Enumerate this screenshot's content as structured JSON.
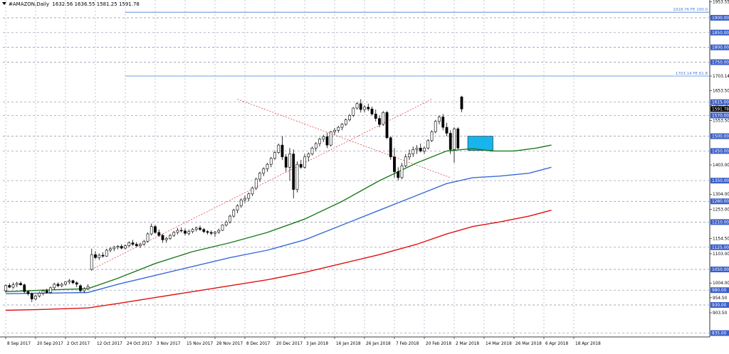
{
  "header": {
    "symbol_timeframe": "#AMAZON,Daily",
    "ohlc": "1632.56 1636.55 1581.25 1591.78"
  },
  "colors": {
    "background": "#ffffff",
    "grid": "#8a8ea8",
    "candle": "#000000",
    "ma_fast": "#1a7a1a",
    "ma_mid": "#3a6ad8",
    "ma_slow": "#e01010",
    "fib_line": "#4a7fd4",
    "zone": "#18b4ee",
    "trend_dash": "#e03030",
    "level_label_bg": "#3a5fc8",
    "price_label_bg": "#000000"
  },
  "chart_data": {
    "type": "candlestick",
    "symbol": "#AMAZON",
    "timeframe": "Daily",
    "ylim": [
      822,
      1960
    ],
    "y_ticks": [
      1953.55,
      1904.0,
      1703.14,
      1653.5,
      1603.0,
      1553.5,
      1403.0,
      1304.0,
      1253.0,
      1154.5,
      1103.0,
      1004.0,
      954.5,
      903.5
    ],
    "x_tick_labels": [
      "8 Sep 2017",
      "20 Sep 2017",
      "2 Oct 2017",
      "12 Oct 2017",
      "24 Oct 2017",
      "3 Nov 2017",
      "15 Nov 2017",
      "28 Nov 2017",
      "8 Dec 2017",
      "20 Dec 2017",
      "3 Jan 2018",
      "16 Jan 2018",
      "26 Jan 2018",
      "7 Feb 2018",
      "20 Feb 2018",
      "2 Mar 2018",
      "14 Mar 2018",
      "26 Mar 2018",
      "6 Apr 2018",
      "18 Apr 2018"
    ],
    "horizontal_levels": [
      1900.0,
      1850.0,
      1800.0,
      1750.0,
      1615.0,
      1570.0,
      1500.0,
      1450.0,
      1350.0,
      1280.0,
      1210.0,
      1125.0,
      1050.0,
      980.0,
      930.0,
      835.0
    ],
    "level_labels": [
      "1900.00",
      "1850.00",
      "1800.00",
      "1750.00",
      "1615.00",
      "1570.00",
      "1500.00",
      "1450.00",
      "1350.00",
      "1280.00",
      "1210.00",
      "1125.00",
      "1050.00",
      "980.00",
      "930.00",
      "835.00"
    ],
    "current_price": 1591.78,
    "current_price_label": "1591.78",
    "fib_levels": [
      {
        "value": 1918.76,
        "label": "1918.76 FE 100.0"
      },
      {
        "value": 1703.14,
        "label": "1703.14 FE 61.8"
      }
    ],
    "zone": {
      "from_date_index": 62,
      "to_date_index": 68,
      "low": 1452,
      "high": 1500
    },
    "trendlines": [
      {
        "from": [
          14,
          1050
        ],
        "to": [
          53,
          1625
        ]
      },
      {
        "from": [
          53,
          1625
        ],
        "to": [
          58,
          1360
        ]
      }
    ],
    "candles": [
      [
        978,
        1000,
        972,
        996
      ],
      [
        996,
        1003,
        987,
        990
      ],
      [
        990,
        1006,
        985,
        998
      ],
      [
        998,
        1008,
        990,
        1003
      ],
      [
        1003,
        1010,
        995,
        998
      ],
      [
        998,
        1002,
        970,
        975
      ],
      [
        975,
        980,
        962,
        968
      ],
      [
        968,
        972,
        940,
        950
      ],
      [
        950,
        965,
        945,
        960
      ],
      [
        960,
        975,
        955,
        970
      ],
      [
        970,
        982,
        962,
        978
      ],
      [
        978,
        985,
        968,
        972
      ],
      [
        972,
        992,
        968,
        988
      ],
      [
        988,
        1005,
        982,
        1000
      ],
      [
        1000,
        1006,
        990,
        995
      ],
      [
        995,
        1005,
        990,
        1000
      ],
      [
        1000,
        1010,
        995,
        1008
      ],
      [
        1008,
        1018,
        1000,
        1012
      ],
      [
        1012,
        1015,
        1000,
        1005
      ],
      [
        1005,
        1010,
        990,
        1000
      ],
      [
        995,
        1000,
        972,
        978
      ],
      [
        978,
        990,
        970,
        985
      ],
      [
        985,
        1000,
        980,
        992
      ],
      [
        1050,
        1120,
        1045,
        1100
      ],
      [
        1100,
        1112,
        1085,
        1090
      ],
      [
        1090,
        1104,
        1082,
        1098
      ],
      [
        1098,
        1108,
        1090,
        1095
      ],
      [
        1095,
        1120,
        1093,
        1115
      ],
      [
        1115,
        1125,
        1108,
        1120
      ],
      [
        1120,
        1130,
        1112,
        1125
      ],
      [
        1125,
        1132,
        1118,
        1128
      ],
      [
        1128,
        1135,
        1118,
        1122
      ],
      [
        1122,
        1134,
        1118,
        1130
      ],
      [
        1130,
        1145,
        1125,
        1140
      ],
      [
        1140,
        1150,
        1130,
        1135
      ],
      [
        1135,
        1142,
        1125,
        1130
      ],
      [
        1130,
        1140,
        1122,
        1135
      ],
      [
        1135,
        1150,
        1130,
        1145
      ],
      [
        1145,
        1175,
        1140,
        1170
      ],
      [
        1170,
        1205,
        1165,
        1195
      ],
      [
        1195,
        1200,
        1170,
        1175
      ],
      [
        1175,
        1185,
        1160,
        1165
      ],
      [
        1165,
        1170,
        1140,
        1150
      ],
      [
        1150,
        1160,
        1140,
        1155
      ],
      [
        1155,
        1170,
        1150,
        1165
      ],
      [
        1165,
        1180,
        1160,
        1175
      ],
      [
        1175,
        1190,
        1168,
        1182
      ],
      [
        1182,
        1192,
        1175,
        1180
      ],
      [
        1180,
        1188,
        1165,
        1172
      ],
      [
        1172,
        1185,
        1165,
        1178
      ],
      [
        1178,
        1190,
        1172,
        1185
      ],
      [
        1185,
        1195,
        1178,
        1190
      ],
      [
        1190,
        1198,
        1180,
        1185
      ],
      [
        1185,
        1190,
        1172,
        1178
      ],
      [
        1178,
        1182,
        1168,
        1175
      ],
      [
        1175,
        1182,
        1165,
        1172
      ],
      [
        1172,
        1180,
        1160,
        1176
      ],
      [
        1176,
        1188,
        1170,
        1182
      ],
      [
        1182,
        1202,
        1180,
        1200
      ],
      [
        1200,
        1215,
        1195,
        1210
      ],
      [
        1210,
        1235,
        1205,
        1230
      ],
      [
        1230,
        1255,
        1225,
        1250
      ],
      [
        1250,
        1270,
        1240,
        1265
      ],
      [
        1265,
        1290,
        1258,
        1285
      ],
      [
        1285,
        1300,
        1275,
        1290
      ],
      [
        1290,
        1310,
        1280,
        1305
      ],
      [
        1305,
        1330,
        1298,
        1325
      ],
      [
        1325,
        1360,
        1318,
        1355
      ],
      [
        1355,
        1380,
        1345,
        1375
      ],
      [
        1375,
        1395,
        1365,
        1390
      ],
      [
        1390,
        1410,
        1380,
        1405
      ],
      [
        1405,
        1430,
        1395,
        1425
      ],
      [
        1425,
        1450,
        1420,
        1445
      ],
      [
        1445,
        1475,
        1440,
        1470
      ],
      [
        1470,
        1500,
        1420,
        1430
      ],
      [
        1430,
        1440,
        1380,
        1395
      ],
      [
        1395,
        1460,
        1350,
        1440
      ],
      [
        1440,
        1455,
        1290,
        1320
      ],
      [
        1320,
        1415,
        1310,
        1405
      ],
      [
        1405,
        1420,
        1390,
        1395
      ],
      [
        1395,
        1440,
        1390,
        1430
      ],
      [
        1430,
        1445,
        1415,
        1440
      ],
      [
        1440,
        1465,
        1435,
        1460
      ],
      [
        1460,
        1480,
        1450,
        1475
      ],
      [
        1475,
        1495,
        1465,
        1490
      ],
      [
        1490,
        1505,
        1480,
        1498
      ],
      [
        1498,
        1512,
        1460,
        1470
      ],
      [
        1470,
        1518,
        1465,
        1515
      ],
      [
        1515,
        1528,
        1505,
        1520
      ],
      [
        1520,
        1535,
        1512,
        1530
      ],
      [
        1530,
        1545,
        1520,
        1540
      ],
      [
        1540,
        1560,
        1535,
        1555
      ],
      [
        1555,
        1575,
        1550,
        1570
      ],
      [
        1570,
        1598,
        1565,
        1595
      ],
      [
        1595,
        1615,
        1590,
        1610
      ],
      [
        1610,
        1625,
        1580,
        1590
      ],
      [
        1590,
        1605,
        1580,
        1598
      ],
      [
        1598,
        1610,
        1585,
        1592
      ],
      [
        1592,
        1600,
        1570,
        1575
      ],
      [
        1575,
        1590,
        1550,
        1560
      ],
      [
        1560,
        1570,
        1530,
        1540
      ],
      [
        1540,
        1585,
        1535,
        1580
      ],
      [
        1580,
        1585,
        1490,
        1495
      ],
      [
        1495,
        1500,
        1420,
        1430
      ],
      [
        1430,
        1460,
        1360,
        1380
      ],
      [
        1380,
        1395,
        1350,
        1360
      ],
      [
        1360,
        1410,
        1355,
        1400
      ],
      [
        1400,
        1440,
        1395,
        1430
      ],
      [
        1430,
        1455,
        1420,
        1440
      ],
      [
        1440,
        1465,
        1430,
        1455
      ],
      [
        1455,
        1470,
        1440,
        1460
      ],
      [
        1460,
        1475,
        1445,
        1450
      ],
      [
        1450,
        1465,
        1440,
        1460
      ],
      [
        1460,
        1490,
        1455,
        1485
      ],
      [
        1485,
        1520,
        1480,
        1515
      ],
      [
        1515,
        1555,
        1510,
        1550
      ],
      [
        1550,
        1570,
        1540,
        1565
      ],
      [
        1565,
        1575,
        1520,
        1530
      ],
      [
        1530,
        1545,
        1500,
        1510
      ],
      [
        1510,
        1520,
        1440,
        1455
      ],
      [
        1455,
        1530,
        1410,
        1525
      ],
      [
        1525,
        1530,
        1455,
        1460
      ],
      [
        1632.56,
        1636.55,
        1581.25,
        1591.78
      ]
    ],
    "ma_fast": [
      [
        0,
        975
      ],
      [
        10,
        980
      ],
      [
        22,
        985
      ],
      [
        30,
        1020
      ],
      [
        40,
        1070
      ],
      [
        50,
        1110
      ],
      [
        60,
        1140
      ],
      [
        70,
        1175
      ],
      [
        80,
        1220
      ],
      [
        90,
        1280
      ],
      [
        100,
        1350
      ],
      [
        110,
        1410
      ],
      [
        118,
        1450
      ],
      [
        125,
        1458
      ],
      [
        130,
        1450
      ],
      [
        136,
        1450
      ],
      [
        142,
        1460
      ],
      [
        146,
        1470
      ]
    ],
    "ma_mid": [
      [
        0,
        968
      ],
      [
        10,
        970
      ],
      [
        22,
        972
      ],
      [
        30,
        1000
      ],
      [
        40,
        1030
      ],
      [
        50,
        1060
      ],
      [
        60,
        1090
      ],
      [
        70,
        1115
      ],
      [
        80,
        1150
      ],
      [
        90,
        1200
      ],
      [
        100,
        1250
      ],
      [
        110,
        1300
      ],
      [
        118,
        1340
      ],
      [
        125,
        1360
      ],
      [
        132,
        1365
      ],
      [
        140,
        1375
      ],
      [
        146,
        1395
      ]
    ],
    "ma_slow": [
      [
        0,
        912
      ],
      [
        10,
        915
      ],
      [
        22,
        920
      ],
      [
        30,
        935
      ],
      [
        40,
        955
      ],
      [
        50,
        975
      ],
      [
        60,
        995
      ],
      [
        70,
        1015
      ],
      [
        80,
        1040
      ],
      [
        90,
        1070
      ],
      [
        100,
        1100
      ],
      [
        110,
        1135
      ],
      [
        118,
        1170
      ],
      [
        125,
        1195
      ],
      [
        132,
        1210
      ],
      [
        140,
        1230
      ],
      [
        146,
        1250
      ]
    ],
    "x_tick_index": [
      0,
      8,
      16,
      24,
      32,
      40,
      48,
      56,
      64,
      72,
      80,
      88,
      96,
      104,
      112,
      120,
      128,
      136,
      144,
      152
    ]
  }
}
